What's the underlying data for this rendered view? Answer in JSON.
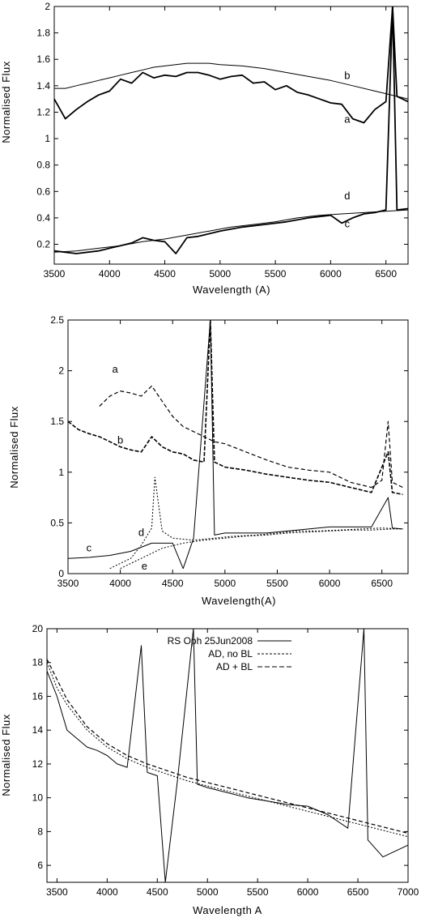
{
  "chart_data": [
    {
      "type": "line",
      "title": "",
      "xlabel": "Wavelength (A)",
      "ylabel": "Normalised Flux",
      "xlim": [
        3500,
        6700
      ],
      "ylim": [
        0.05,
        2.0
      ],
      "xticks": [
        "3500",
        "4000",
        "4500",
        "5000",
        "5500",
        "6000",
        "6500"
      ],
      "yticks": [
        "0.2",
        "0.4",
        "0.6",
        "0.8",
        "1",
        "1.2",
        "1.4",
        "1.6",
        "1.8",
        "2"
      ],
      "xtick_values": [
        3500,
        4000,
        4500,
        5000,
        5500,
        6000,
        6500
      ],
      "ytick_values": [
        0.2,
        0.4,
        0.6,
        0.8,
        1.0,
        1.2,
        1.4,
        1.6,
        1.8,
        2.0
      ],
      "grid": false,
      "series": [
        {
          "name": "a",
          "x": [
            3500,
            3600,
            3700,
            3800,
            3900,
            4000,
            4100,
            4200,
            4300,
            4400,
            4500,
            4600,
            4700,
            4800,
            4900,
            5000,
            5100,
            5200,
            5300,
            5400,
            5500,
            5600,
            5700,
            5800,
            5900,
            6000,
            6100,
            6200,
            6300,
            6400,
            6500,
            6560,
            6600,
            6700
          ],
          "y": [
            1.3,
            1.15,
            1.22,
            1.28,
            1.33,
            1.36,
            1.45,
            1.42,
            1.5,
            1.46,
            1.48,
            1.47,
            1.5,
            1.5,
            1.48,
            1.45,
            1.47,
            1.48,
            1.42,
            1.43,
            1.37,
            1.4,
            1.35,
            1.33,
            1.3,
            1.27,
            1.26,
            1.15,
            1.12,
            1.22,
            1.28,
            2.0,
            1.32,
            1.28
          ],
          "style": "solid-thick"
        },
        {
          "name": "b",
          "x": [
            3500,
            3600,
            3700,
            3800,
            3900,
            4000,
            4100,
            4200,
            4300,
            4400,
            4500,
            4600,
            4700,
            4800,
            4900,
            5000,
            5200,
            5400,
            5600,
            5800,
            6000,
            6200,
            6400,
            6600,
            6700
          ],
          "y": [
            1.38,
            1.38,
            1.4,
            1.42,
            1.44,
            1.46,
            1.48,
            1.5,
            1.52,
            1.54,
            1.55,
            1.56,
            1.57,
            1.57,
            1.57,
            1.56,
            1.55,
            1.53,
            1.5,
            1.47,
            1.44,
            1.4,
            1.36,
            1.32,
            1.3
          ],
          "style": "solid-thin"
        },
        {
          "name": "c",
          "x": [
            3500,
            3600,
            3700,
            3800,
            3900,
            4000,
            4100,
            4200,
            4300,
            4400,
            4500,
            4600,
            4700,
            4800,
            4900,
            5000,
            5200,
            5400,
            5600,
            5800,
            6000,
            6100,
            6200,
            6300,
            6400,
            6500,
            6560,
            6600,
            6700
          ],
          "y": [
            0.15,
            0.14,
            0.13,
            0.14,
            0.15,
            0.17,
            0.19,
            0.21,
            0.25,
            0.23,
            0.22,
            0.13,
            0.25,
            0.26,
            0.28,
            0.3,
            0.33,
            0.35,
            0.37,
            0.4,
            0.42,
            0.36,
            0.4,
            0.43,
            0.44,
            0.46,
            2.0,
            0.46,
            0.47
          ],
          "style": "solid-thick"
        },
        {
          "name": "d",
          "x": [
            3500,
            3700,
            3900,
            4100,
            4300,
            4500,
            4700,
            4900,
            5100,
            5300,
            5500,
            5700,
            5900,
            6100,
            6300,
            6500,
            6700
          ],
          "y": [
            0.14,
            0.15,
            0.17,
            0.19,
            0.22,
            0.24,
            0.27,
            0.3,
            0.33,
            0.35,
            0.37,
            0.4,
            0.42,
            0.43,
            0.44,
            0.45,
            0.46
          ],
          "style": "solid-thin"
        }
      ],
      "annotations": [
        {
          "text": "b",
          "x": 6150,
          "y": 1.45
        },
        {
          "text": "a",
          "x": 6150,
          "y": 1.12
        },
        {
          "text": "d",
          "x": 6150,
          "y": 0.54
        },
        {
          "text": "c",
          "x": 6150,
          "y": 0.33
        }
      ]
    },
    {
      "type": "line",
      "title": "",
      "xlabel": "Wavelength(A)",
      "ylabel": "Normalised Flux",
      "xlim": [
        3500,
        6750
      ],
      "ylim": [
        0,
        2.5
      ],
      "xticks": [
        "3500",
        "4000",
        "4500",
        "5000",
        "5500",
        "6000",
        "6500"
      ],
      "yticks": [
        "0",
        "0.5",
        "1",
        "1.5",
        "2",
        "2.5"
      ],
      "xtick_values": [
        3500,
        4000,
        4500,
        5000,
        5500,
        6000,
        6500
      ],
      "ytick_values": [
        0,
        0.5,
        1.0,
        1.5,
        2.0,
        2.5
      ],
      "grid": false,
      "series": [
        {
          "name": "a",
          "x": [
            3800,
            3900,
            4000,
            4100,
            4200,
            4300,
            4400,
            4500,
            4600,
            4700,
            4800,
            4900,
            5000,
            5200,
            5400,
            5600,
            5800,
            6000,
            6200,
            6400,
            6500,
            6560,
            6600,
            6700
          ],
          "y": [
            1.65,
            1.75,
            1.8,
            1.78,
            1.75,
            1.85,
            1.7,
            1.55,
            1.45,
            1.4,
            1.35,
            1.3,
            1.28,
            1.2,
            1.12,
            1.05,
            1.02,
            1.0,
            0.9,
            0.85,
            0.92,
            1.5,
            0.9,
            0.85
          ],
          "style": "dashed"
        },
        {
          "name": "b",
          "x": [
            3500,
            3600,
            3700,
            3800,
            3900,
            4000,
            4100,
            4200,
            4300,
            4400,
            4500,
            4600,
            4700,
            4800,
            4860,
            4900,
            5000,
            5200,
            5400,
            5600,
            5800,
            6000,
            6200,
            6400,
            6560,
            6600,
            6700
          ],
          "y": [
            1.5,
            1.42,
            1.38,
            1.35,
            1.3,
            1.25,
            1.22,
            1.2,
            1.35,
            1.25,
            1.2,
            1.18,
            1.12,
            1.1,
            2.5,
            1.1,
            1.05,
            1.02,
            0.98,
            0.95,
            0.92,
            0.9,
            0.85,
            0.8,
            1.2,
            0.8,
            0.78
          ],
          "style": "solid-dashed"
        },
        {
          "name": "c",
          "x": [
            3500,
            3700,
            3900,
            4100,
            4300,
            4500,
            4600,
            4700,
            4860,
            4900,
            5000,
            5200,
            5400,
            5600,
            5800,
            6000,
            6200,
            6400,
            6560,
            6600,
            6700
          ],
          "y": [
            0.15,
            0.16,
            0.18,
            0.22,
            0.3,
            0.3,
            0.05,
            0.35,
            2.5,
            0.38,
            0.4,
            0.4,
            0.4,
            0.42,
            0.44,
            0.46,
            0.46,
            0.46,
            0.75,
            0.45,
            0.44
          ],
          "style": "solid"
        },
        {
          "name": "d",
          "x": [
            3900,
            4100,
            4200,
            4300,
            4330,
            4400,
            4500,
            4700,
            4900,
            5100,
            5300,
            5500,
            5700,
            5900,
            6100,
            6300,
            6500,
            6700
          ],
          "y": [
            0.05,
            0.15,
            0.28,
            0.45,
            0.95,
            0.42,
            0.35,
            0.33,
            0.35,
            0.37,
            0.38,
            0.4,
            0.42,
            0.42,
            0.43,
            0.44,
            0.45,
            0.44
          ],
          "style": "dotted"
        },
        {
          "name": "e",
          "x": [
            4000,
            4200,
            4400,
            4600,
            4800,
            5000,
            5200,
            5400,
            5600,
            5800,
            6000,
            6200,
            6400,
            6600,
            6700
          ],
          "y": [
            0.05,
            0.15,
            0.25,
            0.3,
            0.33,
            0.35,
            0.37,
            0.38,
            0.4,
            0.41,
            0.42,
            0.43,
            0.43,
            0.44,
            0.44
          ],
          "style": "dotted"
        }
      ],
      "annotations": [
        {
          "text": "a",
          "x": 3950,
          "y": 1.98
        },
        {
          "text": "b",
          "x": 4000,
          "y": 1.28
        },
        {
          "text": "c",
          "x": 3700,
          "y": 0.22
        },
        {
          "text": "d",
          "x": 4200,
          "y": 0.37
        },
        {
          "text": "e",
          "x": 4230,
          "y": 0.04
        }
      ]
    },
    {
      "type": "line",
      "title": "",
      "xlabel": "Wavelength A",
      "ylabel": "Normalised Flux",
      "xlim": [
        3400,
        7000
      ],
      "ylim": [
        5,
        20
      ],
      "xticks": [
        "3500",
        "4000",
        "4500",
        "5000",
        "5500",
        "6000",
        "6500",
        "7000"
      ],
      "yticks": [
        "6",
        "8",
        "10",
        "12",
        "14",
        "16",
        "18",
        "20"
      ],
      "xtick_values": [
        3500,
        4000,
        4500,
        5000,
        5500,
        6000,
        6500,
        7000
      ],
      "ytick_values": [
        6,
        8,
        10,
        12,
        14,
        16,
        18,
        20
      ],
      "grid": false,
      "legend": "top-left",
      "series": [
        {
          "name": "RS Oph 25Jun2008",
          "x": [
            3400,
            3500,
            3600,
            3700,
            3800,
            3900,
            4000,
            4100,
            4200,
            4340,
            4400,
            4500,
            4580,
            4700,
            4860,
            4900,
            5000,
            5200,
            5400,
            5600,
            5800,
            6000,
            6200,
            6400,
            6560,
            6600,
            6750,
            7000
          ],
          "y": [
            17.5,
            16.0,
            14.0,
            13.5,
            13.0,
            12.8,
            12.5,
            12.0,
            11.8,
            19.0,
            11.5,
            11.3,
            5.0,
            11.0,
            20.0,
            10.8,
            10.6,
            10.3,
            10.0,
            9.8,
            9.6,
            9.5,
            9.0,
            8.2,
            20.0,
            7.5,
            6.5,
            7.2
          ],
          "style": "solid"
        },
        {
          "name": "AD, no BL",
          "x": [
            3400,
            3500,
            3600,
            3800,
            4000,
            4200,
            4400,
            4600,
            4800,
            5000,
            5200,
            5400,
            5600,
            5800,
            6000,
            6200,
            6400,
            6600,
            6800,
            7000
          ],
          "y": [
            18.0,
            16.5,
            15.5,
            14.0,
            13.0,
            12.3,
            11.8,
            11.4,
            11.0,
            10.7,
            10.4,
            10.1,
            9.8,
            9.5,
            9.2,
            8.9,
            8.6,
            8.3,
            8.0,
            7.7
          ],
          "style": "dotted"
        },
        {
          "name": "AD + BL",
          "x": [
            3400,
            3500,
            3600,
            3800,
            4000,
            4200,
            4400,
            4600,
            4800,
            5000,
            5200,
            5400,
            5600,
            5800,
            6000,
            6200,
            6400,
            6600,
            6800,
            7000
          ],
          "y": [
            18.2,
            17.0,
            15.8,
            14.2,
            13.2,
            12.5,
            12.0,
            11.6,
            11.2,
            10.9,
            10.6,
            10.3,
            10.0,
            9.7,
            9.4,
            9.1,
            8.8,
            8.5,
            8.2,
            7.9
          ],
          "style": "dashed"
        }
      ]
    }
  ]
}
